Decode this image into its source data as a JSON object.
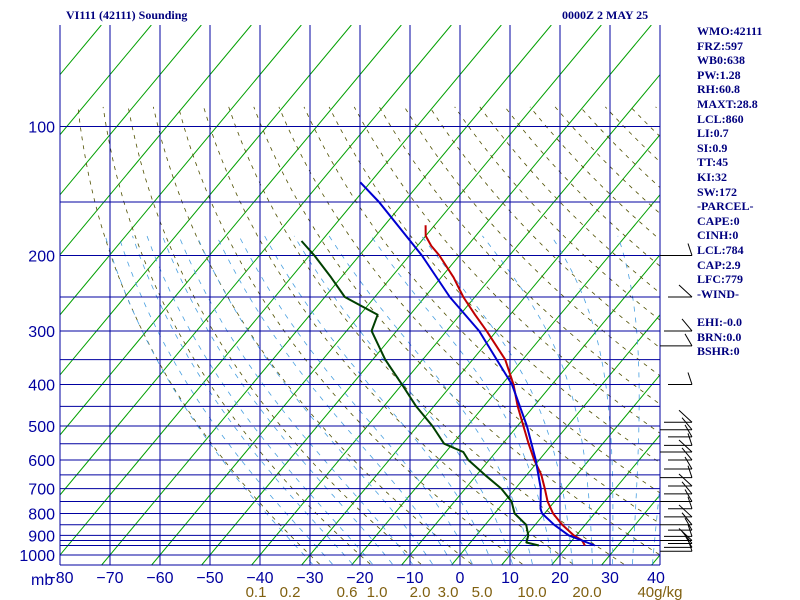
{
  "header": {
    "title": "VI111 (42111) Sounding",
    "time": "0000Z  2 MAY 25"
  },
  "stats": [
    "WMO:42111",
    "FRZ:597",
    "WB0:638",
    "PW:1.28",
    "RH:60.8",
    "MAXT:28.8",
    "LCL:860",
    "LI:0.7",
    "SI:0.9",
    "TT:45",
    "KI:32",
    "SW:172",
    "-PARCEL-",
    "CAPE:0",
    "CINH:0",
    "LCL:784",
    "CAP:2.9",
    "LFC:779",
    "-WIND-",
    "EHI:-0.0",
    "BRN:0.0",
    "BSHR:0"
  ],
  "chart_data": {
    "type": "line",
    "subtype": "skew-t log-p sounding",
    "y_axis": {
      "scale": "log",
      "range": [
        1000,
        100
      ],
      "ticks": [
        100,
        200,
        300,
        400,
        500,
        600,
        700,
        800,
        900,
        1000
      ],
      "unit_label": "mb"
    },
    "x_axis": {
      "range": [
        -80,
        40
      ],
      "ticks": [
        -80,
        -70,
        -60,
        -50,
        -40,
        -30,
        -20,
        -10,
        0,
        10,
        20,
        30,
        40
      ]
    },
    "mixing_ratio_labels": [
      "0.1",
      "0.2",
      "0.6",
      "1.0",
      "2.0",
      "3.0",
      "5.0",
      "10.0",
      "20.0",
      "40g/kg"
    ],
    "grid": true,
    "colors": {
      "frame": "#0000a0",
      "isotherm": "#00a000",
      "dry_adiabat": "#505000",
      "moist_adiabat": "#4aa0e0",
      "temperature": "#c00000",
      "dewpoint": "#004000",
      "parcel": "#0000d0",
      "wind": "#000000",
      "mixing_label": "#806010"
    },
    "series": [
      {
        "role": "temperature",
        "points": [
          [
            950,
            23.4
          ],
          [
            925,
            22.0
          ],
          [
            900,
            19.5
          ],
          [
            850,
            15.4
          ],
          [
            800,
            11.7
          ],
          [
            750,
            8.6
          ],
          [
            700,
            5.9
          ],
          [
            650,
            2.9
          ],
          [
            600,
            -1.0
          ],
          [
            550,
            -4.8
          ],
          [
            500,
            -8.8
          ],
          [
            450,
            -13.2
          ],
          [
            400,
            -17.7
          ],
          [
            350,
            -23.5
          ],
          [
            300,
            -32.0
          ],
          [
            275,
            -37.0
          ],
          [
            250,
            -42.3
          ],
          [
            225,
            -47.5
          ],
          [
            200,
            -54.0
          ],
          [
            190,
            -57.2
          ],
          [
            180,
            -60.0
          ],
          [
            170,
            -61.8
          ]
        ]
      },
      {
        "role": "dewpoint",
        "points": [
          [
            950,
            14.2
          ],
          [
            935,
            11.2
          ],
          [
            900,
            10.4
          ],
          [
            850,
            8.2
          ],
          [
            800,
            4.0
          ],
          [
            750,
            1.4
          ],
          [
            700,
            -2.8
          ],
          [
            650,
            -8.4
          ],
          [
            600,
            -14.2
          ],
          [
            575,
            -16.5
          ],
          [
            550,
            -21.7
          ],
          [
            500,
            -27.0
          ],
          [
            450,
            -33.5
          ],
          [
            400,
            -40.0
          ],
          [
            350,
            -47.5
          ],
          [
            300,
            -55.0
          ],
          [
            275,
            -56.5
          ],
          [
            250,
            -66.0
          ],
          [
            225,
            -72.0
          ],
          [
            200,
            -79.0
          ],
          [
            185,
            -84.0
          ]
        ]
      },
      {
        "role": "parcel",
        "points": [
          [
            950,
            25.4
          ],
          [
            900,
            18.5
          ],
          [
            850,
            13.8
          ],
          [
            800,
            9.5
          ],
          [
            780,
            8.4
          ],
          [
            700,
            5.1
          ],
          [
            600,
            -0.7
          ],
          [
            500,
            -8.1
          ],
          [
            400,
            -18.0
          ],
          [
            300,
            -33.5
          ],
          [
            250,
            -45.0
          ],
          [
            200,
            -57.5
          ],
          [
            150,
            -75.0
          ],
          [
            135,
            -82.0
          ]
        ]
      }
    ],
    "wind_barbs_pressures": [
      980,
      960,
      940,
      925,
      905,
      875,
      850,
      815,
      780,
      750,
      720,
      690,
      660,
      630,
      600,
      575,
      555,
      530,
      510,
      490,
      400,
      325,
      300,
      250,
      200
    ]
  }
}
